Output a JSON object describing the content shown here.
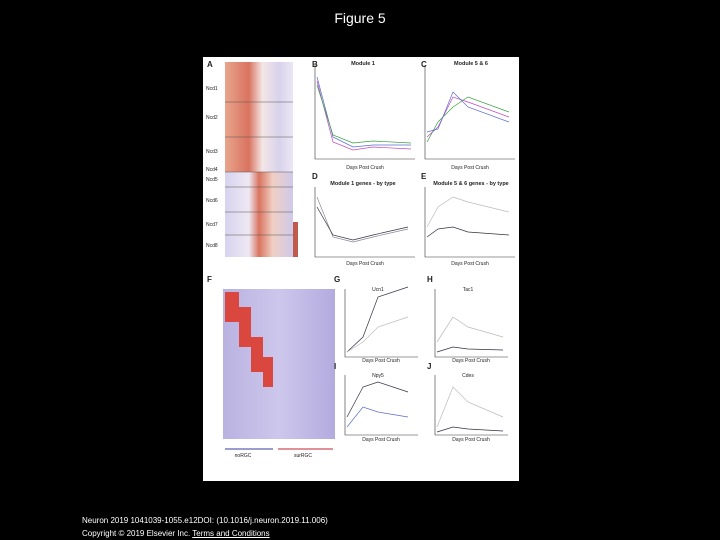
{
  "header": {
    "title": "Figure 5"
  },
  "figure": {
    "panels": [
      "A",
      "B",
      "C",
      "D",
      "E",
      "F",
      "G",
      "H",
      "I",
      "J"
    ],
    "row_labels": [
      "Ncd1",
      "Ncd2",
      "Ncd3",
      "Ncd4",
      "Ncd5",
      "Ncd6",
      "Ncd7",
      "Ncd8"
    ],
    "titles": [
      "Module 1",
      "Module 5 & 6",
      "Module 1 genes - by type",
      "Module 5 & 6 genes - by type"
    ],
    "gene_titles": [
      "Ucn1",
      "Tac1",
      "Npy5",
      "Cdes"
    ],
    "axis_x": "Days Post Crush",
    "groups": [
      "noRGC",
      "surRGC"
    ]
  },
  "footer": {
    "citation": "Neuron 2019 1041039-1055.e12DOI: (10.1016/j.neuron.2019.11.006)",
    "copyright": "Copyright © 2019 Elsevier Inc.",
    "link": "Terms and Conditions"
  }
}
